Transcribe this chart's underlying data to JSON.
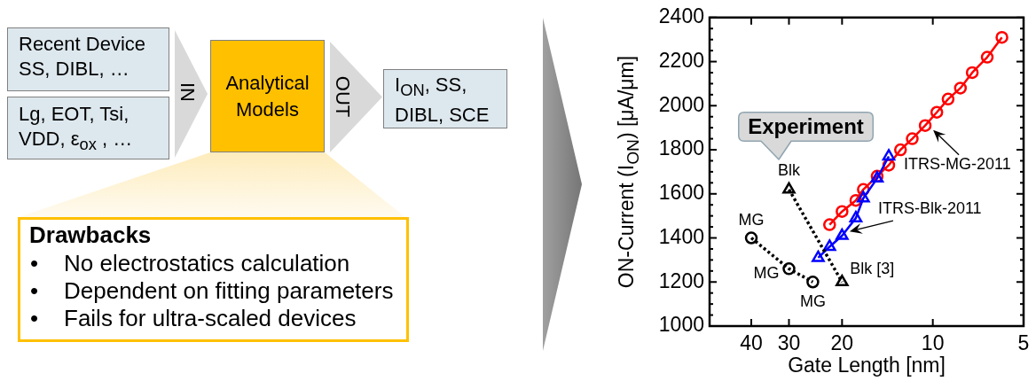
{
  "chart_data": [
    {
      "type": "other",
      "annotations": [
        "Recent Device\nSS, DIBL, …",
        "Lg, EOT, Tsi,\nVDD, ε$_{ox}$ , …",
        "IN",
        "Analytical\nModels",
        "OUT",
        "I$_{ON}$, SS,\nDIBL, SCE",
        "Drawbacks",
        "•\tNo electrostatics calculation",
        "•\tDependent on fitting parameters",
        "•\tFails for ultra-scaled devices"
      ]
    },
    {
      "type": "line",
      "xlabel": "Gate Length [nm]",
      "ylabel": "ON-Current (I$_{ON}$) [μA/μm]",
      "log": "x",
      "xlim": [
        55,
        5
      ],
      "xticks": [
        40,
        30,
        20,
        10,
        5
      ],
      "ylim": [
        1000,
        2400
      ],
      "yticks": [
        1000,
        {
          "value": 1050,
          "label": null
        },
        {
          "value": 1100,
          "label": null
        },
        {
          "value": 1150,
          "label": null
        },
        1200,
        {
          "value": 1250,
          "label": null
        },
        {
          "value": 1300,
          "label": null
        },
        {
          "value": 1350,
          "label": null
        },
        1400,
        {
          "value": 1450,
          "label": null
        },
        {
          "value": 1500,
          "label": null
        },
        {
          "value": 1550,
          "label": null
        },
        1600,
        {
          "value": 1650,
          "label": null
        },
        {
          "value": 1700,
          "label": null
        },
        {
          "value": 1750,
          "label": null
        },
        1800,
        {
          "value": 1850,
          "label": null
        },
        {
          "value": 1900,
          "label": null
        },
        {
          "value": 1950,
          "label": null
        },
        2000,
        {
          "value": 2050,
          "label": null
        },
        {
          "value": 2100,
          "label": null
        },
        {
          "value": 2150,
          "label": null
        },
        2200,
        {
          "value": 2250,
          "label": null
        },
        {
          "value": 2300,
          "label": null
        },
        {
          "value": 2350,
          "label": null
        },
        2400
      ],
      "series": [
        {
          "name": "ITRS-MG-2011",
          "color": "#ff0000",
          "marker": "circle",
          "x": [
            22,
            20,
            18,
            17,
            15.3,
            14,
            12.8,
            11.7,
            10.6,
            9.7,
            8.9,
            8.1,
            7.4,
            6.6,
            5.9
          ],
          "values": [
            1460,
            1520,
            1570,
            1620,
            1680,
            1730,
            1800,
            1850,
            1910,
            1970,
            2030,
            2080,
            2150,
            2220,
            2310
          ]
        },
        {
          "name": "ITRS-Blk-2011",
          "color": "#0000ff",
          "marker": "triangle",
          "x": [
            24,
            22,
            20,
            18,
            17,
            15.3,
            14
          ],
          "values": [
            1310,
            1360,
            1410,
            1490,
            1580,
            1670,
            1770
          ]
        },
        {
          "color": "#000000",
          "marker": "circle",
          "line_style": "dotted",
          "x": [
            40,
            30,
            25
          ],
          "values": [
            1400,
            1260,
            1200
          ]
        },
        {
          "color": "#000000",
          "marker": "triangle",
          "line_style": "dotted",
          "x": [
            30,
            20
          ],
          "values": [
            1620,
            1200
          ]
        }
      ],
      "annotations": [
        "Experiment",
        {
          "text": "Blk",
          "x": 30,
          "y": 1620
        },
        {
          "text": "MG",
          "x": 40,
          "y": 1400
        },
        {
          "text": "MG",
          "x": 30,
          "y": 1260
        },
        {
          "text": "MG",
          "x": 25,
          "y": 1200
        },
        {
          "text": "Blk [3]",
          "x": 20,
          "y": 1200
        }
      ]
    }
  ]
}
